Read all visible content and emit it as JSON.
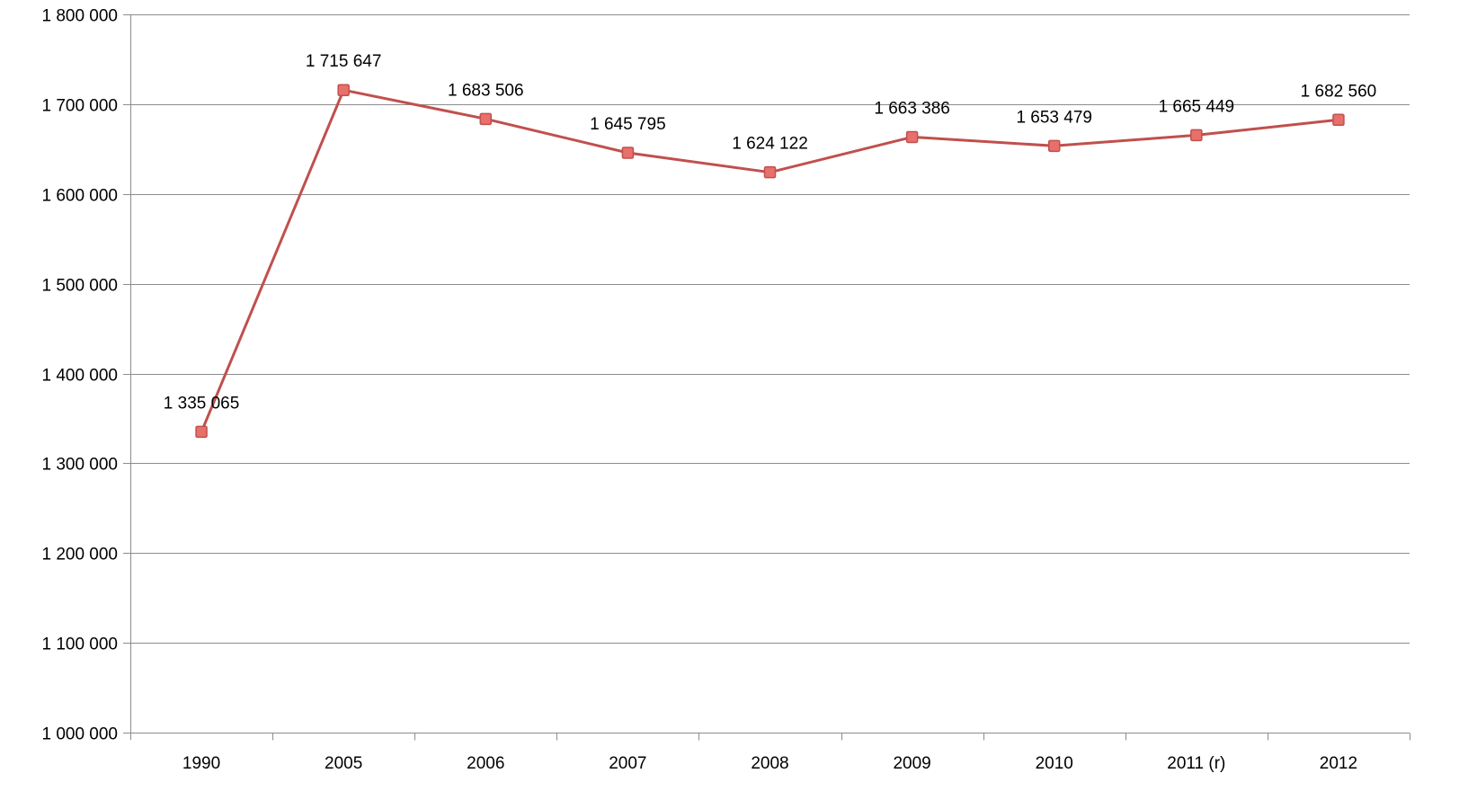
{
  "chart_data": {
    "type": "line",
    "categories": [
      "1990",
      "2005",
      "2006",
      "2007",
      "2008",
      "2009",
      "2010",
      "2011 (r)",
      "2012"
    ],
    "series": [
      {
        "values": [
          1335065,
          1715647,
          1683506,
          1645795,
          1624122,
          1663386,
          1653479,
          1665449,
          1682560
        ],
        "data_labels": [
          "1 335 065",
          "1 715 647",
          "1 683 506",
          "1 645 795",
          "1 624 122",
          "1 663 386",
          "1 653 479",
          "1 665 449",
          "1 682 560"
        ],
        "color": "#c0504d",
        "marker_fill": "#e8706c",
        "marker": "square"
      }
    ],
    "ylim": [
      1000000,
      1800000
    ],
    "ytick_values": [
      1000000,
      1100000,
      1200000,
      1300000,
      1400000,
      1500000,
      1600000,
      1700000,
      1800000
    ],
    "ytick_labels": [
      "1 000 000",
      "1 100 000",
      "1 200 000",
      "1 300 000",
      "1 400 000",
      "1 500 000",
      "1 600 000",
      "1 700 000",
      "1 800 000"
    ],
    "title": "",
    "xlabel": "",
    "ylabel": "",
    "grid": "horizontal",
    "legend": "none",
    "gridline_color": "#8c8c8c",
    "axis_color": "#8c8c8c"
  }
}
